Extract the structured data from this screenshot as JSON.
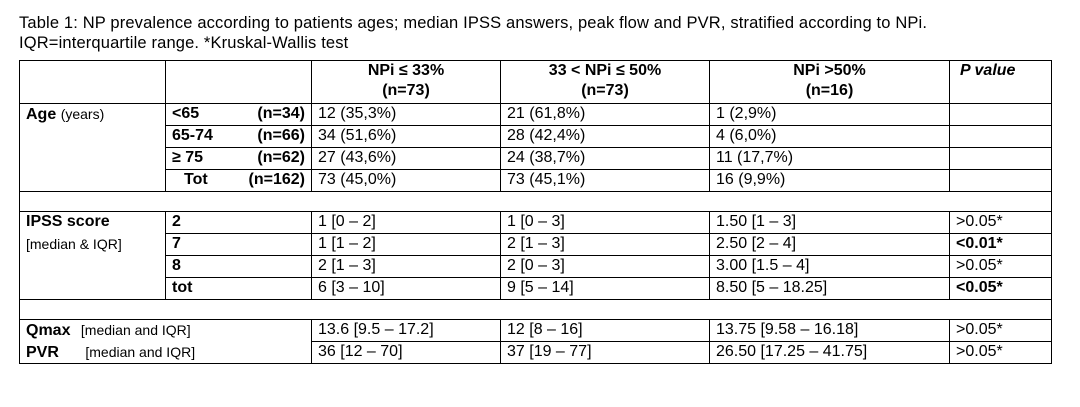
{
  "caption": "Table 1: NP prevalence according to patients ages; median IPSS answers, peak flow and PVR, stratified according to NPi. IQR=interquartile range. *Kruskal-Wallis test",
  "header": {
    "col1_line1": "NPi ≤ 33%",
    "col1_line2": "(n=73)",
    "col2_line1": "33 < NPi ≤ 50%",
    "col2_line2": "(n=73)",
    "col3_line1": "NPi >50%",
    "col3_line2": "(n=16)",
    "pvalue": "P value"
  },
  "age": {
    "label": "Age",
    "unit": "(years)",
    "rows": [
      {
        "group": "<65",
        "n": "(n=34)",
        "c1": "12 (35,3%)",
        "c2": "21 (61,8%)",
        "c3": "1 (2,9%)",
        "p": ""
      },
      {
        "group": "65-74",
        "n": "(n=66)",
        "c1": "34 (51,6%)",
        "c2": "28 (42,4%)",
        "c3": "4 (6,0%)",
        "p": ""
      },
      {
        "group": "≥ 75",
        "n": "(n=62)",
        "c1": "27 (43,6%)",
        "c2": "24 (38,7%)",
        "c3": "11 (17,7%)",
        "p": ""
      },
      {
        "group": "Tot",
        "n": "(n=162)",
        "c1": "73 (45,0%)",
        "c2": "73 (45,1%)",
        "c3": "16 (9,9%)",
        "p": ""
      }
    ]
  },
  "ipss": {
    "label": "IPSS score",
    "sublabel": "[median & IQR]",
    "rows": [
      {
        "group": "2",
        "c1": "1 [0 – 2]",
        "c2": "1 [0 – 3]",
        "c3": "1.50 [1 – 3]",
        "p": ">0.05*"
      },
      {
        "group": "7",
        "c1": "1 [1 – 2]",
        "c2": "2 [1 – 3]",
        "c3": "2.50 [2 – 4]",
        "p": "<0.01*"
      },
      {
        "group": "8",
        "c1": "2 [1 – 3]",
        "c2": "2 [0 – 3]",
        "c3": "3.00 [1.5 – 4]",
        "p": ">0.05*"
      },
      {
        "group": "tot",
        "c1": "6 [3 – 10]",
        "c2": "9 [5 – 14]",
        "c3": "8.50 [5 – 18.25]",
        "p": "<0.05*"
      }
    ]
  },
  "qmax": {
    "label": "Qmax",
    "sub": "[median and IQR]",
    "c1": "13.6 [9.5 – 17.2]",
    "c2": "12 [8 – 16]",
    "c3": "13.75 [9.58 – 16.18]",
    "p": ">0.05*"
  },
  "pvr": {
    "label": "PVR",
    "sub": "[median and IQR]",
    "c1": "36 [12 – 70]",
    "c2": "37 [19 – 77]",
    "c3": "26.50 [17.25 – 41.75]",
    "p": ">0.05*"
  }
}
